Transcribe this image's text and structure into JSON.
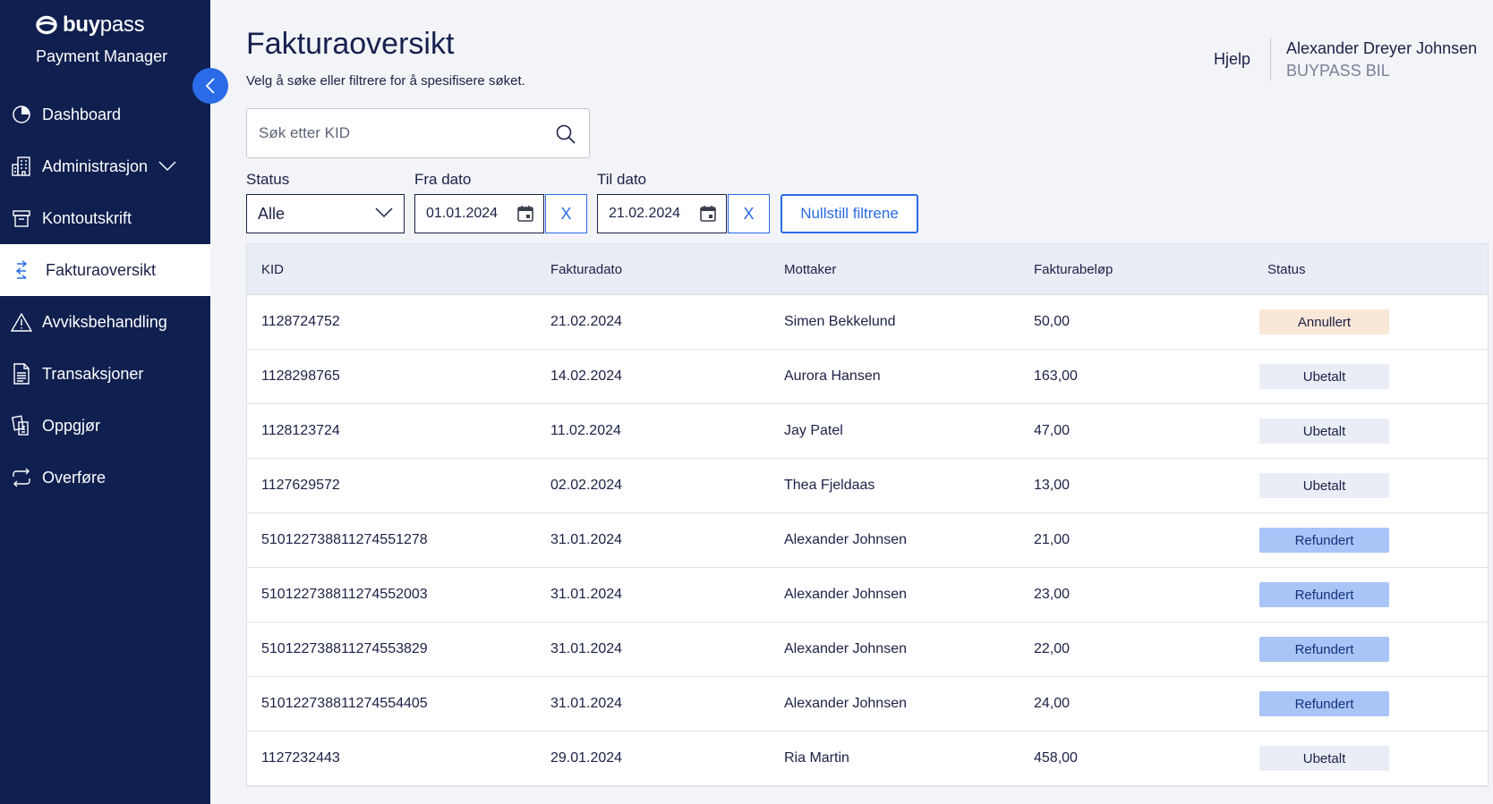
{
  "brand": {
    "name_bold": "buy",
    "name_light": "pass",
    "product": "Payment Manager"
  },
  "colors": {
    "sidebar": "#0f1f4f",
    "accent": "#2b6be7",
    "annullert": "#f9e7d7",
    "ubetalt": "#e9edf5",
    "refundert": "#a9c4f7"
  },
  "sidebar": {
    "items": [
      {
        "label": "Dashboard",
        "icon": "pie-chart-icon"
      },
      {
        "label": "Administrasjon",
        "icon": "building-icon"
      },
      {
        "label": "Kontoutskrift",
        "icon": "archive-icon"
      },
      {
        "label": "Fakturaoversikt",
        "icon": "transfer-arrows-icon"
      },
      {
        "label": "Avviksbehandling",
        "icon": "warning-icon"
      },
      {
        "label": "Transaksjoner",
        "icon": "document-icon"
      },
      {
        "label": "Oppgjør",
        "icon": "settlement-icon"
      },
      {
        "label": "Overføre",
        "icon": "repeat-icon"
      }
    ]
  },
  "header": {
    "title": "Fakturaoversikt",
    "subtitle": "Velg å søke eller filtrere for å spesifisere søket.",
    "help": "Hjelp",
    "user_name": "Alexander Dreyer Johnsen",
    "user_org": "BUYPASS BIL"
  },
  "search": {
    "placeholder": "Søk etter KID"
  },
  "filters": {
    "status_label": "Status",
    "status_value": "Alle",
    "from_label": "Fra dato",
    "from_value": "01.01.2024",
    "to_label": "Til dato",
    "to_value": "21.02.2024",
    "clear_label": "X",
    "reset_label": "Nullstill filtrene"
  },
  "table": {
    "headers": [
      "KID",
      "Fakturadato",
      "Mottaker",
      "Fakturabeløp",
      "Status"
    ],
    "rows": [
      [
        "1128724752",
        "21.02.2024",
        "Simen Bekkelund",
        "50,00",
        "Annullert"
      ],
      [
        "1128298765",
        "14.02.2024",
        "Aurora Hansen",
        "163,00",
        "Ubetalt"
      ],
      [
        "1128123724",
        "11.02.2024",
        "Jay Patel",
        "47,00",
        "Ubetalt"
      ],
      [
        "1127629572",
        "02.02.2024",
        "Thea Fjeldaas",
        "13,00",
        "Ubetalt"
      ],
      [
        "510122738811274551278",
        "31.01.2024",
        "Alexander Johnsen",
        "21,00",
        "Refundert"
      ],
      [
        "510122738811274552003",
        "31.01.2024",
        "Alexander Johnsen",
        "23,00",
        "Refundert"
      ],
      [
        "510122738811274553829",
        "31.01.2024",
        "Alexander Johnsen",
        "22,00",
        "Refundert"
      ],
      [
        "510122738811274554405",
        "31.01.2024",
        "Alexander Johnsen",
        "24,00",
        "Refundert"
      ],
      [
        "1127232443",
        "29.01.2024",
        "Ria Martin",
        "458,00",
        "Ubetalt"
      ]
    ]
  }
}
